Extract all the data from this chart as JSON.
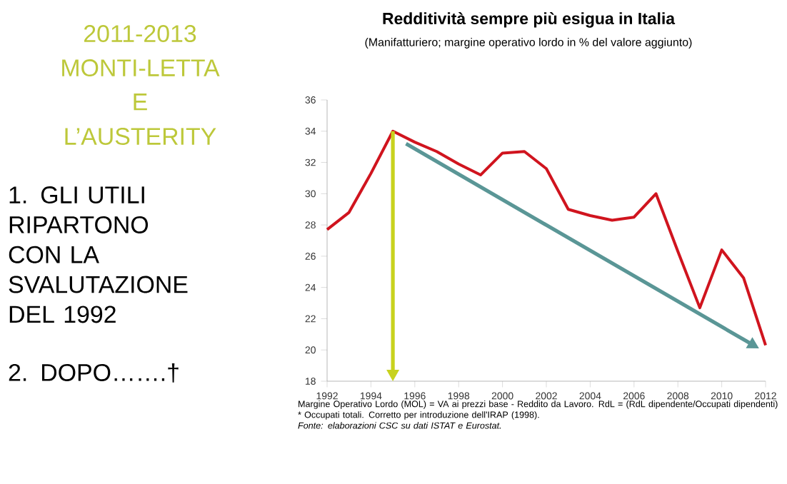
{
  "chart_data": {
    "type": "line",
    "title": "Redditività sempre più esigua in Italia",
    "subtitle": "(Manifatturiero; margine operativo lordo in % del valore aggiunto)",
    "x": [
      1992,
      1993,
      1994,
      1995,
      1996,
      1997,
      1998,
      1999,
      2000,
      2001,
      2002,
      2003,
      2004,
      2005,
      2006,
      2007,
      2008,
      2009,
      2010,
      2011,
      2012
    ],
    "values": [
      27.7,
      28.8,
      31.3,
      34.0,
      33.3,
      32.7,
      31.9,
      31.2,
      32.6,
      32.7,
      31.6,
      29.0,
      28.6,
      28.3,
      28.5,
      30.0,
      26.3,
      22.7,
      26.4,
      24.6,
      20.3
    ],
    "color": "#d0141e",
    "xlim": [
      1992,
      2012
    ],
    "xticks": [
      1992,
      1994,
      1996,
      1998,
      2000,
      2002,
      2004,
      2006,
      2008,
      2010,
      2012
    ],
    "ylim": [
      18,
      36
    ],
    "yticks": [
      18,
      20,
      22,
      24,
      26,
      28,
      30,
      32,
      34,
      36
    ],
    "grid": false,
    "marker": "none",
    "line_style": "solid",
    "annotations": [
      "2011-2013",
      "MONTI-LETTA",
      "E",
      "L’AUSTERITY",
      "1. GLI UTILI RIPARTONO CON LA SVALUTAZIONE DEL 1992",
      "2. DOPO…….†",
      "Margine Operativo Lordo (MOL) = VA ai prezzi base - Reddito da Lavoro. RdL = (RdL dipendente/Occupati dipendenti) * Occupati totali. Corretto per introduzione dell'IRAP (1998).",
      "Fonte: elaborazioni CSC su dati ISTAT e Eurostat."
    ]
  }
}
